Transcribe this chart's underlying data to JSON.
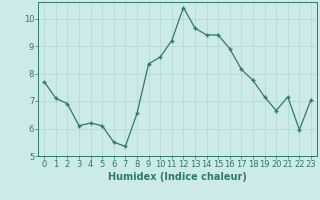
{
  "x": [
    0,
    1,
    2,
    3,
    4,
    5,
    6,
    7,
    8,
    9,
    10,
    11,
    12,
    13,
    14,
    15,
    16,
    17,
    18,
    19,
    20,
    21,
    22,
    23
  ],
  "y": [
    7.7,
    7.1,
    6.9,
    6.1,
    6.2,
    6.1,
    5.5,
    5.35,
    6.55,
    8.35,
    8.6,
    9.2,
    10.4,
    9.65,
    9.4,
    9.4,
    8.9,
    8.15,
    7.75,
    7.15,
    6.65,
    7.15,
    5.95,
    7.05
  ],
  "line_color": "#2d7a6e",
  "marker_color": "#2d7a6e",
  "bg_color": "#cceaea",
  "grid_color": "#b8d8d8",
  "xlabel": "Humidex (Indice chaleur)",
  "ylim": [
    5,
    10.6
  ],
  "xlim": [
    -0.5,
    23.5
  ],
  "yticks": [
    5,
    6,
    7,
    8,
    9,
    10
  ],
  "xticks": [
    0,
    1,
    2,
    3,
    4,
    5,
    6,
    7,
    8,
    9,
    10,
    11,
    12,
    13,
    14,
    15,
    16,
    17,
    18,
    19,
    20,
    21,
    22,
    23
  ],
  "label_fontsize": 7,
  "tick_fontsize": 6
}
